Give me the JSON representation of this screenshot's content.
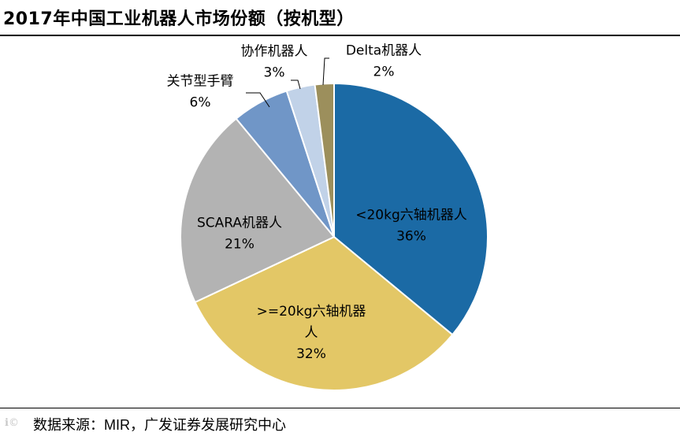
{
  "header": {
    "title": "2017年中国工业机器人市场份额（按机型）"
  },
  "footer": {
    "source": "数据来源：MIR，广发证券发展研究中心"
  },
  "chart_data": {
    "type": "pie",
    "title": "2017年中国工业机器人市场份额（按机型）",
    "start_angle_deg": 0,
    "direction": "clockwise",
    "slices": [
      {
        "label": "<20kg六轴机器人",
        "label_lines": [
          "<20kg六轴机器人"
        ],
        "value": 36,
        "value_label": "36%",
        "color": "#1b6aa5"
      },
      {
        "label": ">=20kg六轴机器人",
        "label_lines": [
          ">=20kg六轴机器",
          "人"
        ],
        "value": 32,
        "value_label": "32%",
        "color": "#e3c766"
      },
      {
        "label": "SCARA机器人",
        "label_lines": [
          "SCARA机器人"
        ],
        "value": 21,
        "value_label": "21%",
        "color": "#b3b3b3"
      },
      {
        "label": "关节型手臂",
        "label_lines": [
          "关节型手臂"
        ],
        "value": 6,
        "value_label": "6%",
        "color": "#7096c7"
      },
      {
        "label": "协作机器人",
        "label_lines": [
          "协作机器人"
        ],
        "value": 3,
        "value_label": "3%",
        "color": "#c1d2e8"
      },
      {
        "label": "Delta机器人",
        "label_lines": [
          "Delta机器人"
        ],
        "value": 2,
        "value_label": "2%",
        "color": "#9c8f5c"
      }
    ]
  }
}
